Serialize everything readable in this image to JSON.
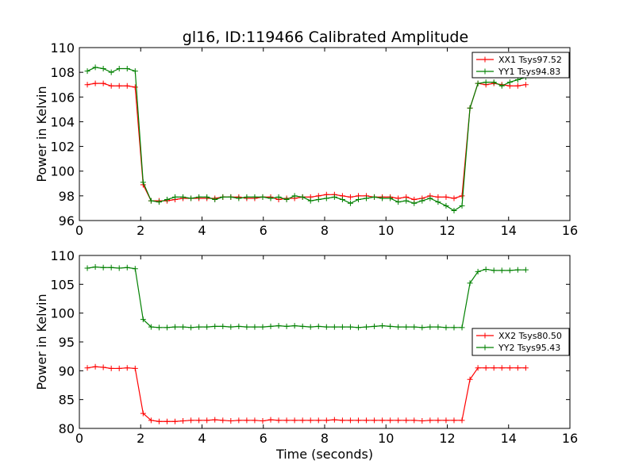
{
  "chart_data": [
    {
      "type": "line",
      "title": "gl16, ID:119466 Calibrated Amplitude",
      "xlabel": "",
      "ylabel": "Power in Kelvin",
      "xlim": [
        0,
        16
      ],
      "ylim": [
        96,
        110
      ],
      "xticks": [
        0,
        2,
        4,
        6,
        8,
        10,
        12,
        14,
        16
      ],
      "yticks": [
        96,
        98,
        100,
        102,
        104,
        106,
        108,
        110
      ],
      "legend_position": "top-right",
      "grid": false,
      "x": [
        0.26,
        0.52,
        0.78,
        1.04,
        1.3,
        1.56,
        1.82,
        2.08,
        2.34,
        2.6,
        2.86,
        3.12,
        3.38,
        3.64,
        3.9,
        4.16,
        4.42,
        4.68,
        4.94,
        5.2,
        5.46,
        5.72,
        5.98,
        6.24,
        6.5,
        6.76,
        7.02,
        7.28,
        7.54,
        7.8,
        8.06,
        8.32,
        8.58,
        8.84,
        9.1,
        9.36,
        9.62,
        9.88,
        10.14,
        10.4,
        10.66,
        10.92,
        11.18,
        11.44,
        11.7,
        11.96,
        12.22,
        12.48,
        12.74,
        13.0,
        13.26,
        13.52,
        13.78,
        14.04,
        14.3,
        14.56
      ],
      "series": [
        {
          "name": "XX1 Tsys97.52",
          "color": "#ff0000",
          "values": [
            107.0,
            107.1,
            107.1,
            106.9,
            106.9,
            106.9,
            106.8,
            98.9,
            97.6,
            97.6,
            97.6,
            97.7,
            97.8,
            97.8,
            97.8,
            97.8,
            97.8,
            97.9,
            97.9,
            97.9,
            97.8,
            97.8,
            97.9,
            97.9,
            97.7,
            97.8,
            97.8,
            97.9,
            97.9,
            98.0,
            98.1,
            98.1,
            98.0,
            97.9,
            98.0,
            98.0,
            97.9,
            97.9,
            97.9,
            97.8,
            97.9,
            97.7,
            97.8,
            98.0,
            97.9,
            97.9,
            97.8,
            98.0,
            105.1,
            107.1,
            107.0,
            107.1,
            107.0,
            106.9,
            106.9,
            107.0
          ]
        },
        {
          "name": "YY1 Tsys94.83",
          "color": "#008000",
          "values": [
            108.1,
            108.4,
            108.3,
            108.0,
            108.3,
            108.3,
            108.1,
            99.1,
            97.6,
            97.5,
            97.7,
            97.9,
            97.9,
            97.8,
            97.9,
            97.9,
            97.7,
            97.9,
            97.9,
            97.8,
            97.9,
            97.9,
            97.9,
            97.8,
            97.9,
            97.7,
            98.0,
            97.9,
            97.6,
            97.7,
            97.8,
            97.9,
            97.7,
            97.4,
            97.7,
            97.8,
            97.9,
            97.8,
            97.8,
            97.5,
            97.6,
            97.4,
            97.6,
            97.8,
            97.5,
            97.2,
            96.8,
            97.2,
            105.1,
            107.1,
            107.2,
            107.2,
            106.9,
            107.2,
            107.4,
            107.6
          ]
        }
      ]
    },
    {
      "type": "line",
      "title": "",
      "xlabel": "Time (seconds)",
      "ylabel": "Power in Kelvin",
      "xlim": [
        0,
        16
      ],
      "ylim": [
        80,
        110
      ],
      "xticks": [
        0,
        2,
        4,
        6,
        8,
        10,
        12,
        14,
        16
      ],
      "yticks": [
        80,
        85,
        90,
        95,
        100,
        105,
        110
      ],
      "legend_position": "center-right",
      "grid": false,
      "x": [
        0.26,
        0.52,
        0.78,
        1.04,
        1.3,
        1.56,
        1.82,
        2.08,
        2.34,
        2.6,
        2.86,
        3.12,
        3.38,
        3.64,
        3.9,
        4.16,
        4.42,
        4.68,
        4.94,
        5.2,
        5.46,
        5.72,
        5.98,
        6.24,
        6.5,
        6.76,
        7.02,
        7.28,
        7.54,
        7.8,
        8.06,
        8.32,
        8.58,
        8.84,
        9.1,
        9.36,
        9.62,
        9.88,
        10.14,
        10.4,
        10.66,
        10.92,
        11.18,
        11.44,
        11.7,
        11.96,
        12.22,
        12.48,
        12.74,
        13.0,
        13.26,
        13.52,
        13.78,
        14.04,
        14.3,
        14.56
      ],
      "series": [
        {
          "name": "XX2 Tsys80.50",
          "color": "#ff0000",
          "values": [
            90.5,
            90.7,
            90.6,
            90.4,
            90.4,
            90.5,
            90.4,
            82.6,
            81.4,
            81.2,
            81.2,
            81.2,
            81.3,
            81.4,
            81.4,
            81.4,
            81.5,
            81.4,
            81.3,
            81.4,
            81.4,
            81.4,
            81.3,
            81.5,
            81.4,
            81.4,
            81.4,
            81.4,
            81.4,
            81.4,
            81.4,
            81.5,
            81.4,
            81.4,
            81.4,
            81.4,
            81.4,
            81.4,
            81.4,
            81.4,
            81.4,
            81.4,
            81.3,
            81.4,
            81.4,
            81.4,
            81.4,
            81.4,
            88.5,
            90.5,
            90.5,
            90.5,
            90.5,
            90.5,
            90.5,
            90.5
          ]
        },
        {
          "name": "YY2 Tsys95.43",
          "color": "#008000",
          "values": [
            107.8,
            108.0,
            107.9,
            107.9,
            107.8,
            107.9,
            107.7,
            98.9,
            97.6,
            97.5,
            97.5,
            97.6,
            97.6,
            97.5,
            97.6,
            97.6,
            97.7,
            97.7,
            97.6,
            97.7,
            97.6,
            97.6,
            97.6,
            97.7,
            97.8,
            97.7,
            97.8,
            97.7,
            97.6,
            97.7,
            97.6,
            97.6,
            97.6,
            97.6,
            97.5,
            97.6,
            97.7,
            97.8,
            97.7,
            97.6,
            97.6,
            97.6,
            97.5,
            97.6,
            97.6,
            97.5,
            97.5,
            97.5,
            105.2,
            107.2,
            107.6,
            107.4,
            107.4,
            107.4,
            107.5,
            107.5
          ]
        }
      ]
    }
  ]
}
